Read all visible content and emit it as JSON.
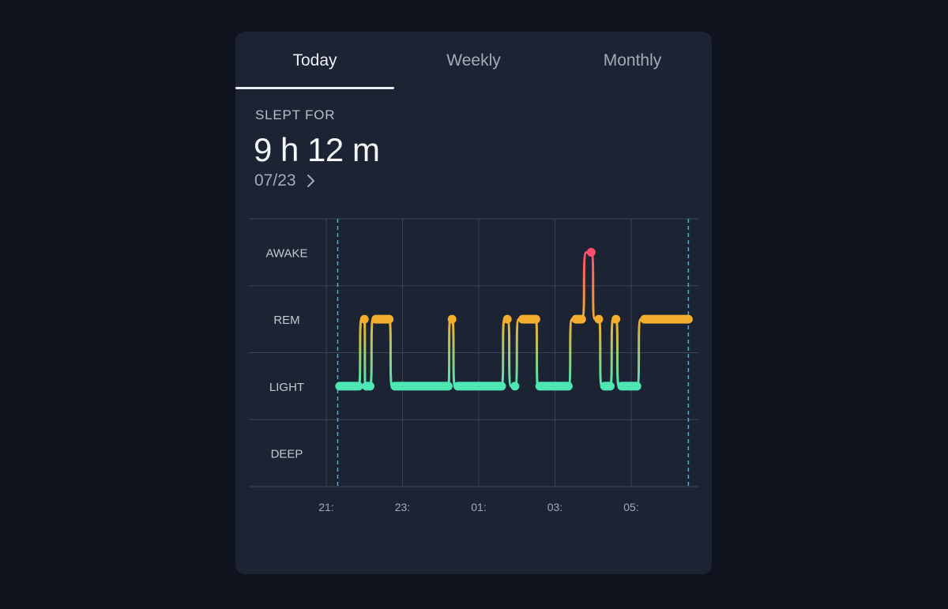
{
  "tabs": [
    {
      "label": "Today",
      "active": true
    },
    {
      "label": "Weekly",
      "active": false
    },
    {
      "label": "Monthly",
      "active": false
    }
  ],
  "summary": {
    "label": "SLEPT FOR",
    "duration": "9 h 12 m",
    "date": "07/23"
  },
  "icons": {
    "date_nav": "chevron-right-icon"
  },
  "colors": {
    "awake": "#ff4d6b",
    "rem": "#f4ae2d",
    "light": "#4ee6b3",
    "marker": "#3ab7e6",
    "card": "#1c2333",
    "background": "#0f131d"
  },
  "chart_data": {
    "type": "line",
    "stages": [
      "AWAKE",
      "REM",
      "LIGHT",
      "DEEP"
    ],
    "x_ticks": [
      "21:",
      "23:",
      "01:",
      "03:",
      "05:"
    ],
    "x_tick_hours": [
      21,
      23,
      25,
      27,
      29
    ],
    "xlim_hours": [
      21,
      32.7
    ],
    "sleep_start_hour": 21.3,
    "sleep_end_hour": 30.5,
    "segments": [
      {
        "stage": "LIGHT",
        "start": 21.35,
        "end": 21.85
      },
      {
        "stage": "REM",
        "start": 22.0,
        "end": 22.0
      },
      {
        "stage": "LIGHT",
        "start": 22.05,
        "end": 22.15
      },
      {
        "stage": "REM",
        "start": 22.3,
        "end": 22.65
      },
      {
        "stage": "LIGHT",
        "start": 22.8,
        "end": 24.2
      },
      {
        "stage": "REM",
        "start": 24.3,
        "end": 24.3
      },
      {
        "stage": "LIGHT",
        "start": 24.45,
        "end": 25.6
      },
      {
        "stage": "REM",
        "start": 25.75,
        "end": 25.75
      },
      {
        "stage": "LIGHT",
        "start": 25.95,
        "end": 25.95
      },
      {
        "stage": "REM",
        "start": 26.15,
        "end": 26.5
      },
      {
        "stage": "LIGHT",
        "start": 26.6,
        "end": 27.35
      },
      {
        "stage": "REM",
        "start": 27.55,
        "end": 27.7
      },
      {
        "stage": "AWAKE",
        "start": 27.95,
        "end": 27.95
      },
      {
        "stage": "REM",
        "start": 28.15,
        "end": 28.15
      },
      {
        "stage": "LIGHT",
        "start": 28.3,
        "end": 28.45
      },
      {
        "stage": "REM",
        "start": 28.6,
        "end": 28.6
      },
      {
        "stage": "LIGHT",
        "start": 28.75,
        "end": 29.15
      },
      {
        "stage": "REM",
        "start": 29.35,
        "end": 30.5
      }
    ]
  }
}
